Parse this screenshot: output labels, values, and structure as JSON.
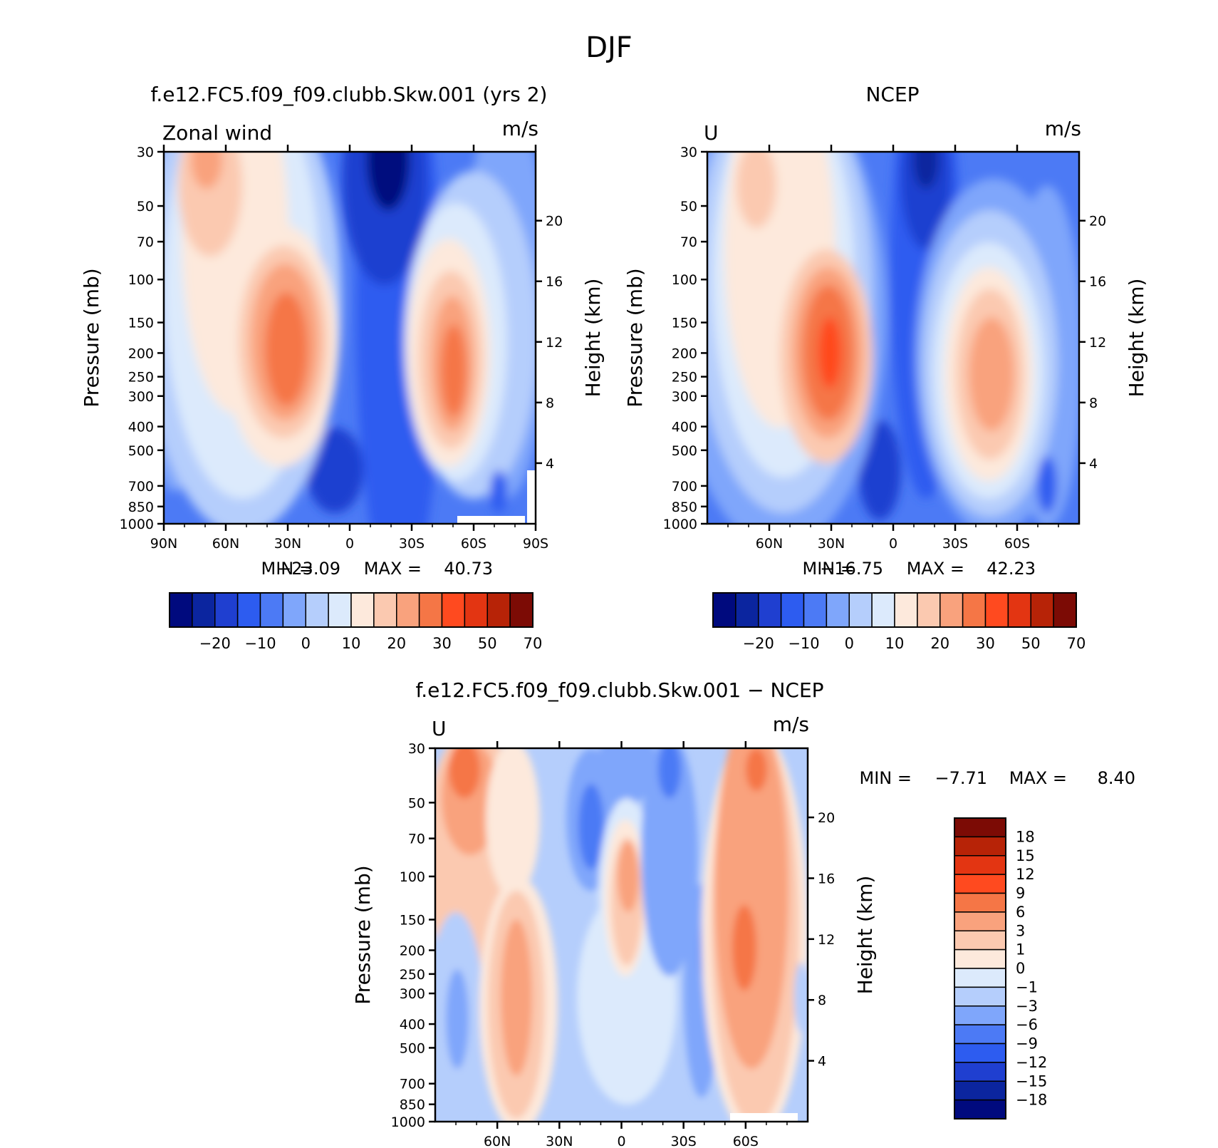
{
  "figure": {
    "season": "DJF"
  },
  "colors": {
    "palette": [
      "#000a7e",
      "#0b259f",
      "#1f3fd0",
      "#2d5cf0",
      "#4c7af5",
      "#7fa6fb",
      "#b5cefc",
      "#dceafc",
      "#fde9dc",
      "#fbc9b0",
      "#f9a27d",
      "#f57646",
      "#ff4a1f",
      "#e33512",
      "#b72307",
      "#7c0b05"
    ],
    "diff_palette": [
      "#000a7e",
      "#0b259f",
      "#1f3fd0",
      "#2d5cf0",
      "#4c7af5",
      "#7fa6fb",
      "#b5cefc",
      "#dceafc",
      "#fde9dc",
      "#fbc9b0",
      "#f9a27d",
      "#f57646",
      "#ff4a1f",
      "#e33512",
      "#b72307",
      "#7c0b05"
    ]
  },
  "chart_data": [
    {
      "type": "contour",
      "title": "f.e12.FC5.f09_f09.clubb.Skw.001 (yrs 2)",
      "left_label": "Zonal wind",
      "units": "m/s",
      "ylabel": "Pressure (mb)",
      "ylabel_right": "Height (km)",
      "x_ticks": [
        "90N",
        "60N",
        "30N",
        "0",
        "30S",
        "60S",
        "90S"
      ],
      "y_ticks": [
        "30",
        "50",
        "70",
        "100",
        "150",
        "200",
        "250",
        "300",
        "400",
        "500",
        "700",
        "850",
        "1000"
      ],
      "height_ticks": [
        "20",
        "16",
        "12",
        "8",
        "4"
      ],
      "xlim": [
        "90N",
        "90S"
      ],
      "ylim_mb": [
        1000,
        30
      ],
      "min_label": "MIN =",
      "min": "−23.09",
      "max_label": "MAX =",
      "max": "40.73",
      "colorbar_labels": [
        "−20",
        "−10",
        "0",
        "10",
        "20",
        "30",
        "50",
        "70"
      ],
      "features": [
        {
          "name": "NH subtropical jet",
          "lat": "30N",
          "level_mb": 200,
          "max": 40.73
        },
        {
          "name": "SH subtropical jet",
          "lat": "45S",
          "level_mb": 200,
          "value": 35
        },
        {
          "name": "tropical easterlies",
          "lat": "15S",
          "level_mb": 30,
          "min": -23.09
        }
      ]
    },
    {
      "type": "contour",
      "title": "NCEP",
      "left_label": "U",
      "units": "m/s",
      "ylabel": "Pressure (mb)",
      "ylabel_right": "Height (km)",
      "x_ticks": [
        "60N",
        "30N",
        "0",
        "30S",
        "60S"
      ],
      "y_ticks": [
        "30",
        "50",
        "70",
        "100",
        "150",
        "200",
        "250",
        "300",
        "400",
        "500",
        "700",
        "850",
        "1000"
      ],
      "height_ticks": [
        "20",
        "16",
        "12",
        "8",
        "4"
      ],
      "min_label": "MIN =",
      "min": "−16.75",
      "max_label": "MAX =",
      "max": "42.23",
      "colorbar_labels": [
        "−20",
        "−10",
        "0",
        "10",
        "20",
        "30",
        "50",
        "70"
      ],
      "features": [
        {
          "name": "NH subtropical jet",
          "lat": "30N",
          "level_mb": 200,
          "max": 42.23
        },
        {
          "name": "SH subtropical jet",
          "lat": "45S",
          "level_mb": 200,
          "value": 30
        },
        {
          "name": "tropical easterlies",
          "lat": "15S",
          "level_mb": 30,
          "min": -16.75
        }
      ]
    },
    {
      "type": "contour",
      "title": "f.e12.FC5.f09_f09.clubb.Skw.001 − NCEP",
      "left_label": "U",
      "units": "m/s",
      "ylabel": "Pressure (mb)",
      "ylabel_right": "Height (km)",
      "x_ticks": [
        "60N",
        "30N",
        "0",
        "30S",
        "60S"
      ],
      "y_ticks": [
        "30",
        "50",
        "70",
        "100",
        "150",
        "200",
        "250",
        "300",
        "400",
        "500",
        "700",
        "850",
        "1000"
      ],
      "height_ticks": [
        "20",
        "16",
        "12",
        "8",
        "4"
      ],
      "min_label": "MIN =",
      "min": "−7.71",
      "max_label": "MAX =",
      "max": "8.40",
      "colorbar_labels": [
        "18",
        "15",
        "12",
        "9",
        "6",
        "3",
        "1",
        "0",
        "−1",
        "−3",
        "−6",
        "−9",
        "−12",
        "−15",
        "−18"
      ]
    }
  ]
}
